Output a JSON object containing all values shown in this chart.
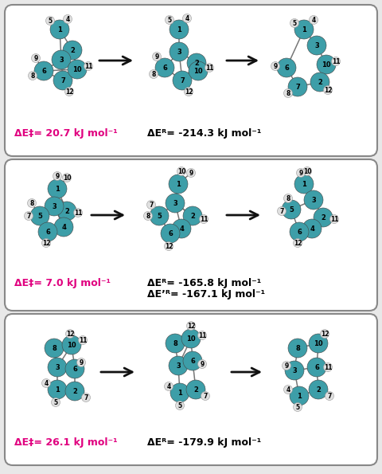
{
  "background_color": "#e8e8e8",
  "panel_bg": "#ffffff",
  "border_color": "#888888",
  "teal_color": "#3d9ea8",
  "white_atom": "#e0e0e0",
  "magenta_color": "#e0007f",
  "panel1": {
    "delta_e_barrier": "ΔE‡= 20.7 kJ mol⁻¹",
    "delta_e_reaction": "ΔEᴿ= -214.3 kJ mol⁻¹"
  },
  "panel2": {
    "delta_e_barrier": "ΔE‡= 7.0 kJ mol⁻¹",
    "delta_e_reaction": "ΔEᴿ= -165.8 kJ mol⁻¹",
    "delta_e_reaction2": "ΔE’ᴿ= -167.1 kJ mol⁻¹"
  },
  "panel3": {
    "delta_e_barrier": "ΔE‡= 26.1 kJ mol⁻¹",
    "delta_e_reaction": "ΔEᴿ= -179.9 kJ mol⁻¹"
  },
  "arrow_color": "#111111",
  "label_fontsize": 9.0,
  "TR": 12,
  "WR": 5.5
}
